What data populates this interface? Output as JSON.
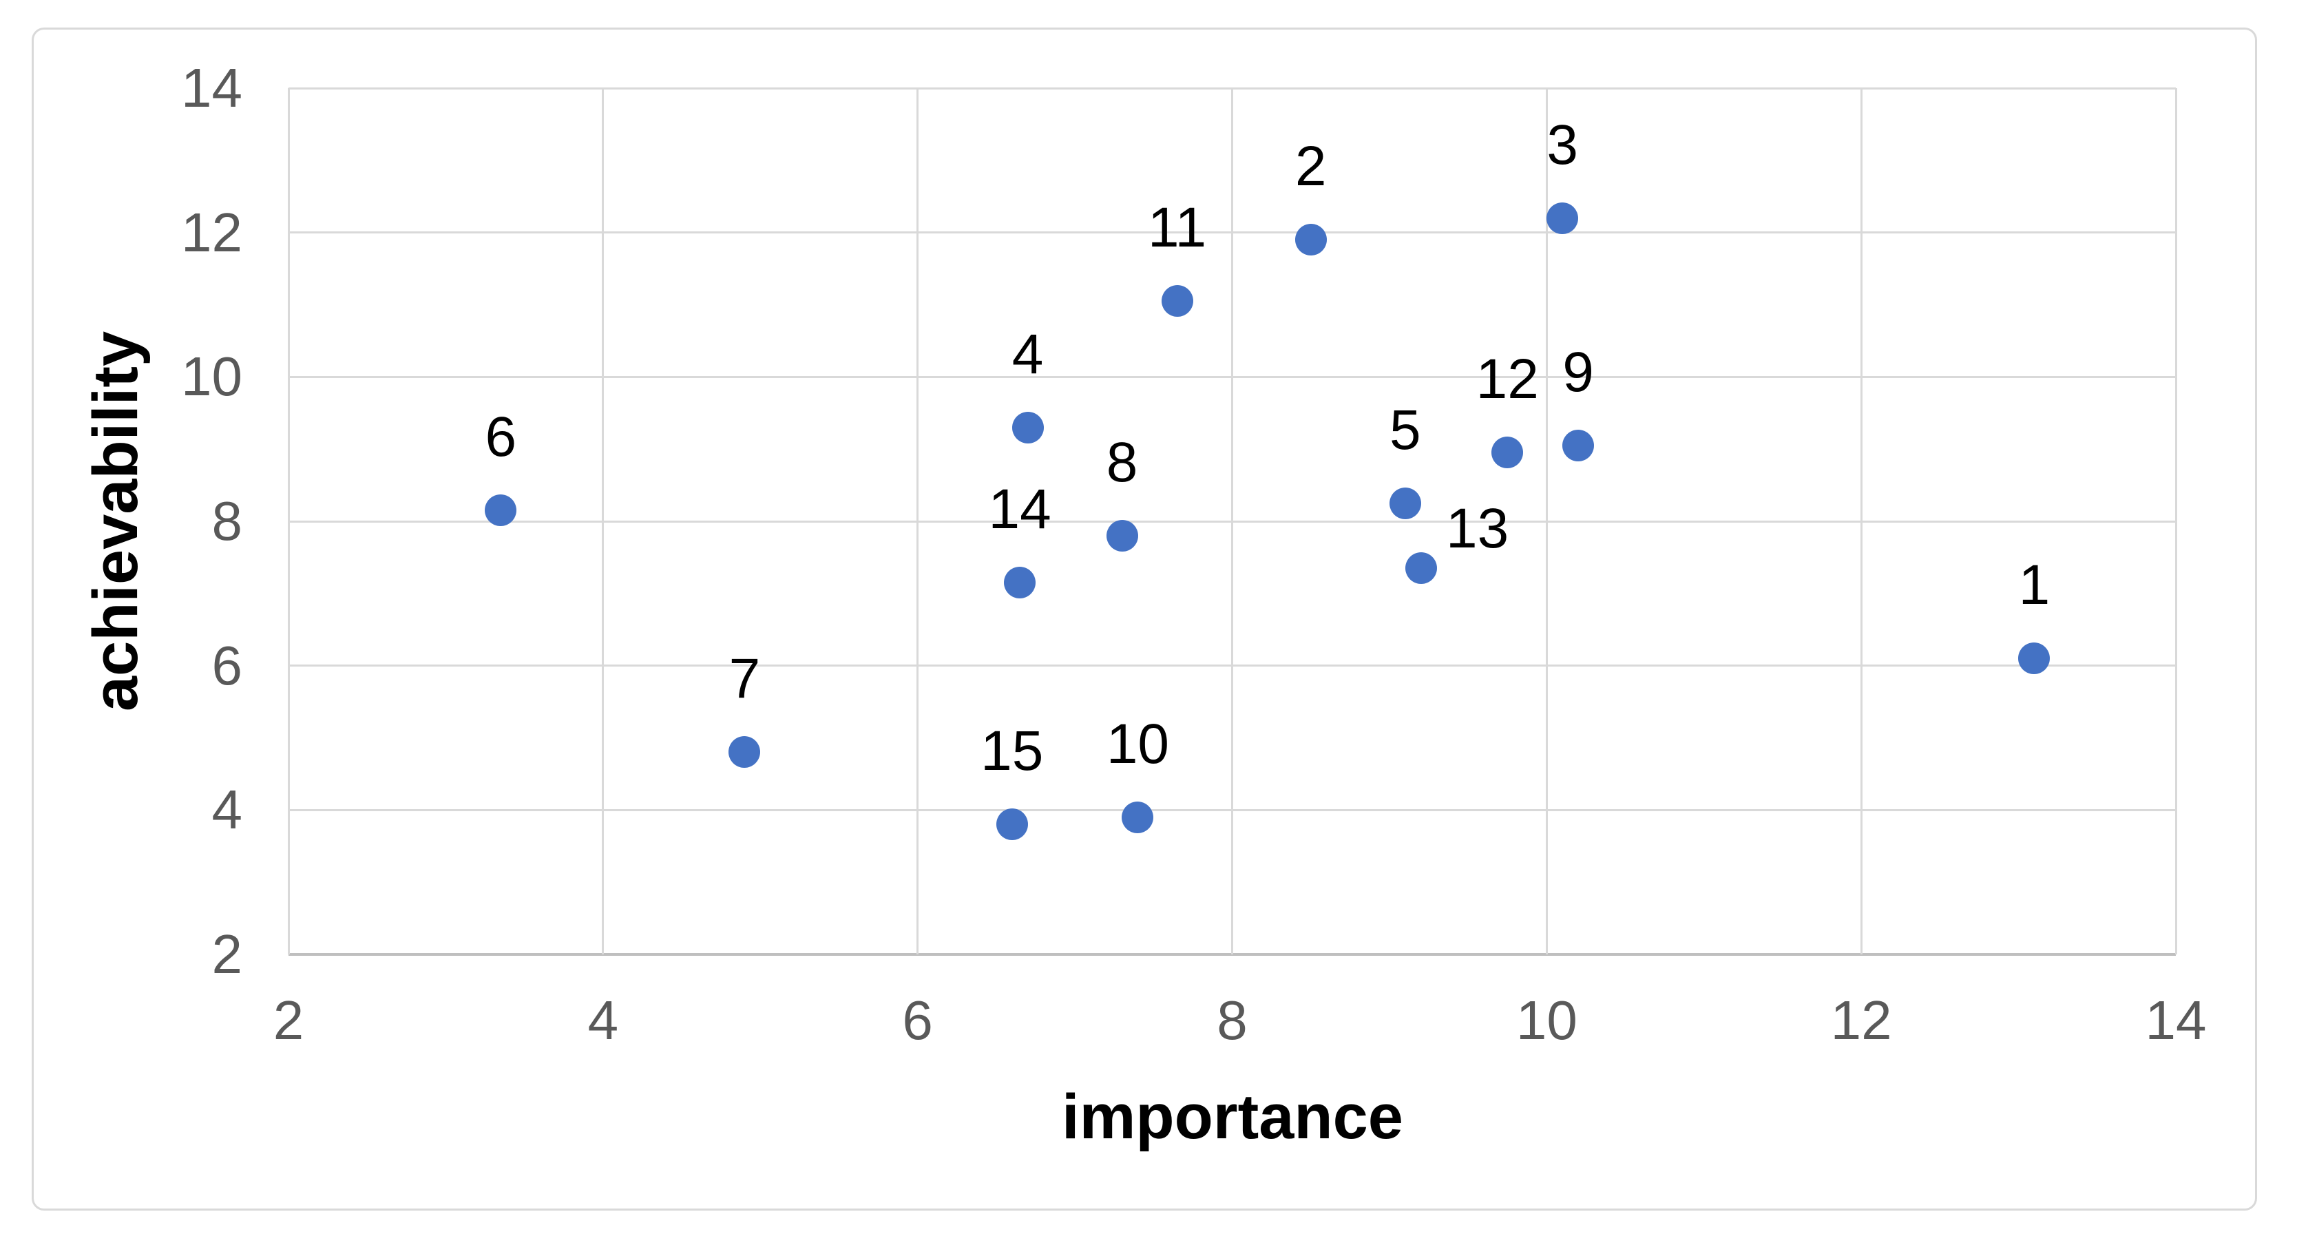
{
  "chart_data": {
    "type": "scatter",
    "title": "",
    "xlabel": "importance",
    "ylabel": "achievability",
    "xlim": [
      2,
      14
    ],
    "ylim": [
      2,
      14
    ],
    "xticks": [
      2,
      4,
      6,
      8,
      10,
      12,
      14
    ],
    "yticks": [
      2,
      4,
      6,
      8,
      10,
      12,
      14
    ],
    "grid": true,
    "legend": false,
    "marker_color": "#4472C4",
    "gridline_color": "#D9D9D9",
    "axis_line_color": "#BFBFBF",
    "tick_label_color": "#595959",
    "point_label_color": "#000000",
    "points": [
      {
        "label": "1",
        "x": 13.1,
        "y": 6.1
      },
      {
        "label": "2",
        "x": 8.5,
        "y": 11.9
      },
      {
        "label": "3",
        "x": 10.1,
        "y": 12.2
      },
      {
        "label": "4",
        "x": 6.7,
        "y": 9.3
      },
      {
        "label": "5",
        "x": 9.1,
        "y": 8.25
      },
      {
        "label": "6",
        "x": 3.35,
        "y": 8.15
      },
      {
        "label": "7",
        "x": 4.9,
        "y": 4.8
      },
      {
        "label": "8",
        "x": 7.3,
        "y": 7.8
      },
      {
        "label": "9",
        "x": 10.2,
        "y": 9.05
      },
      {
        "label": "10",
        "x": 7.4,
        "y": 3.9
      },
      {
        "label": "11",
        "x": 7.65,
        "y": 11.05
      },
      {
        "label": "12",
        "x": 9.75,
        "y": 8.95
      },
      {
        "label": "13",
        "x": 9.2,
        "y": 7.35
      },
      {
        "label": "14",
        "x": 6.65,
        "y": 7.15
      },
      {
        "label": "15",
        "x": 6.6,
        "y": 3.8
      }
    ]
  }
}
